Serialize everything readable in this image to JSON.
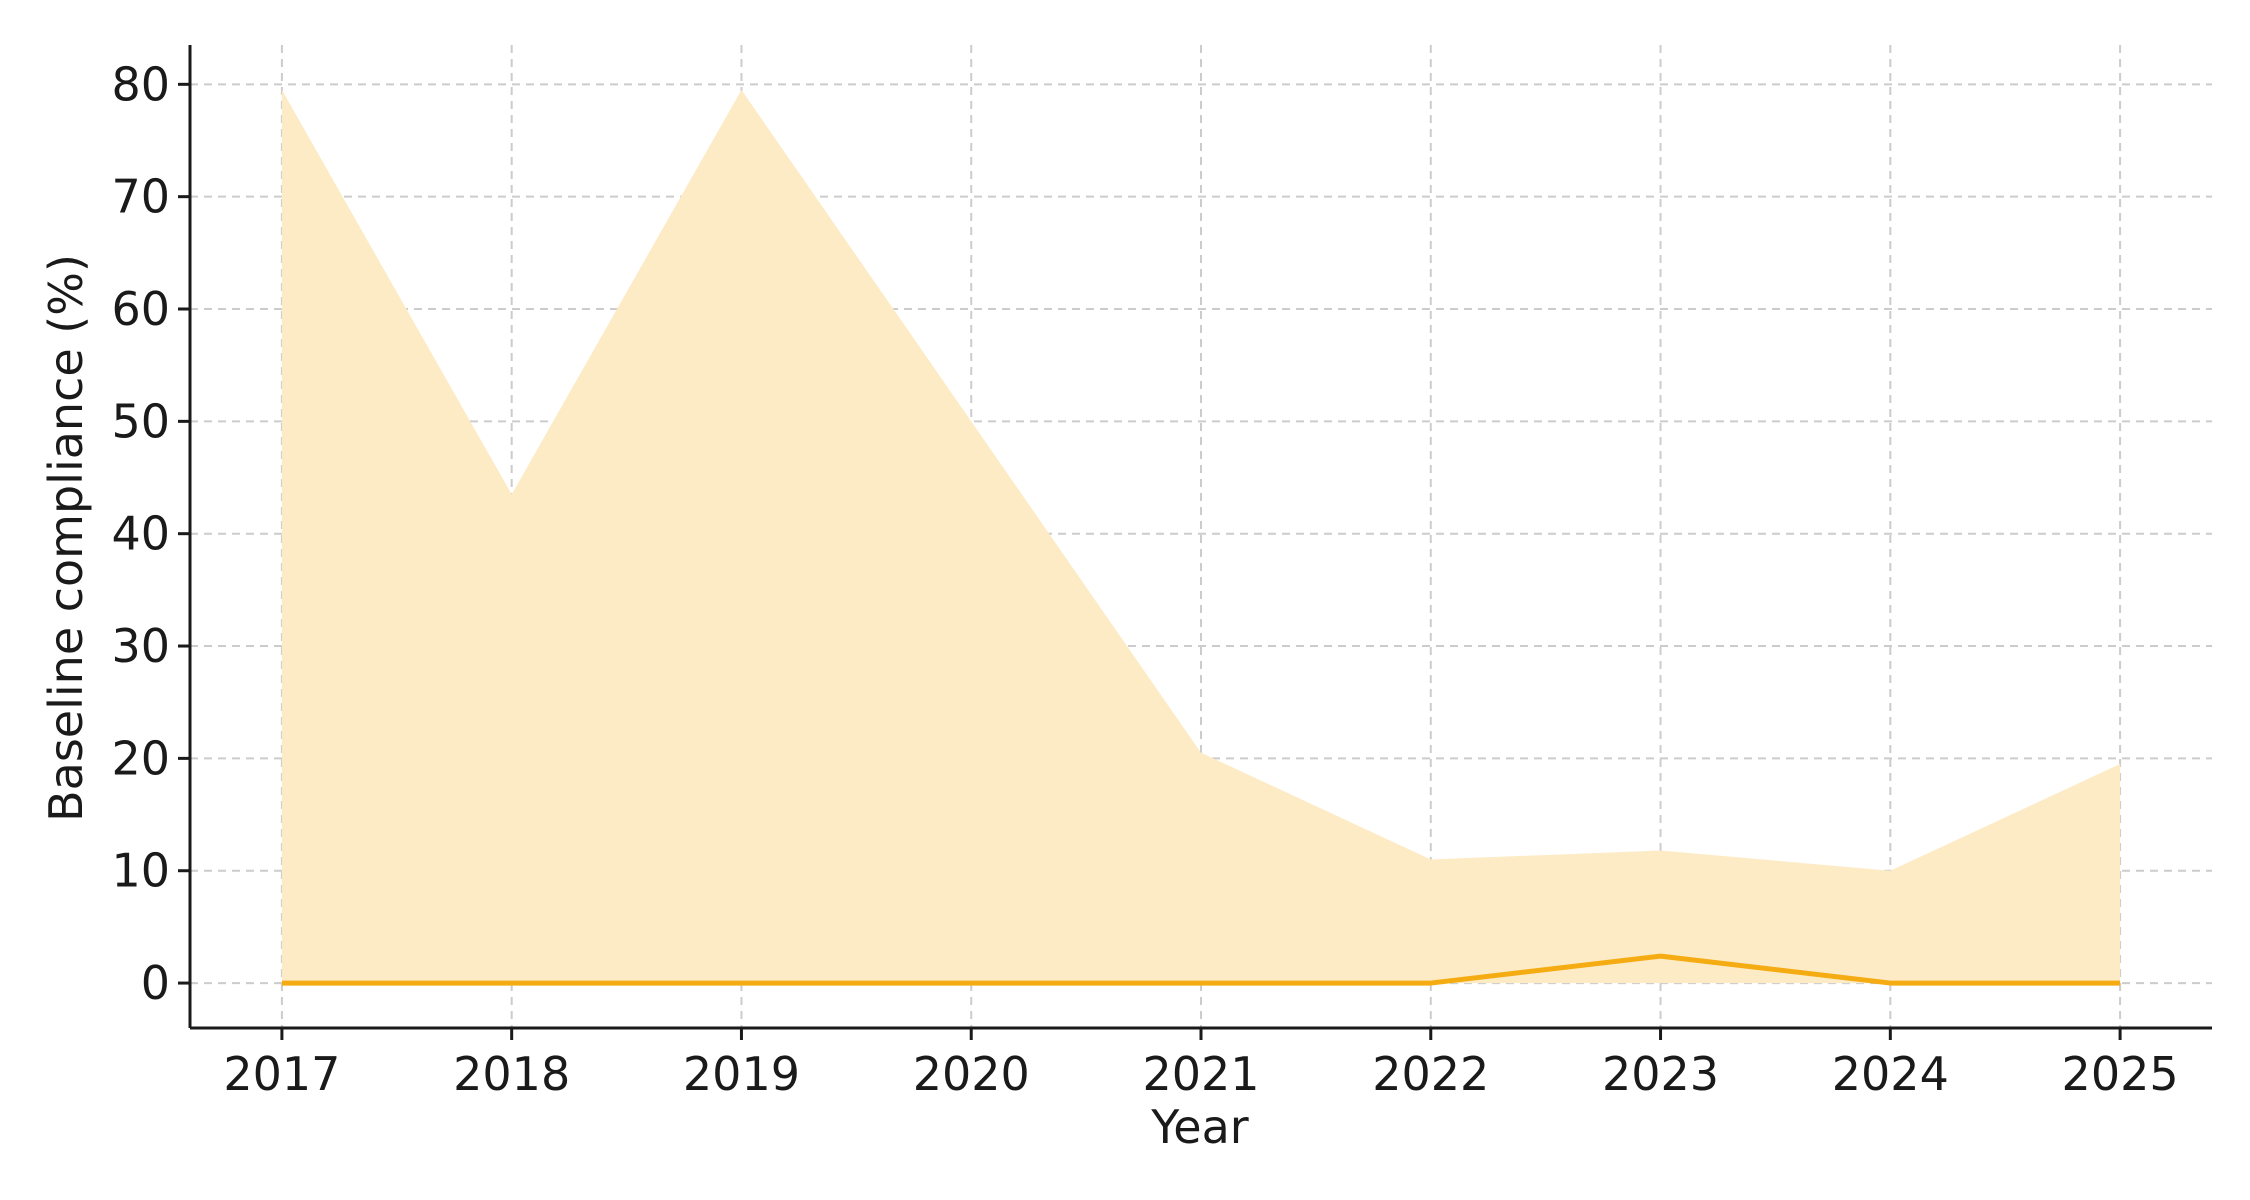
{
  "chart_data": {
    "type": "area",
    "x": [
      2017,
      2018,
      2019,
      2020,
      2021,
      2022,
      2023,
      2024,
      2025
    ],
    "x_tick_labels": [
      "2017",
      "2018",
      "2019",
      "2020",
      "2021",
      "2022",
      "2023",
      "2024",
      "2025"
    ],
    "series": [
      {
        "role": "band-upper",
        "values": [
          79.5,
          43.5,
          79.5,
          50.0,
          20.5,
          11.0,
          11.8,
          10.0,
          19.5
        ],
        "color": "#fdebc6"
      },
      {
        "role": "band-lower",
        "values": [
          0,
          0,
          0,
          0,
          0,
          0,
          0,
          0,
          0
        ]
      },
      {
        "role": "line",
        "values": [
          0,
          0,
          0,
          0,
          0,
          0,
          2.4,
          0,
          0
        ],
        "color": "#f5ab12"
      }
    ],
    "xlabel": "Year",
    "ylabel": "Baseline compliance (%)",
    "ylim": [
      -4,
      83.5
    ],
    "xlim": [
      2016.6,
      2025.4
    ],
    "y_ticks": [
      0,
      10,
      20,
      30,
      40,
      50,
      60,
      70,
      80
    ],
    "y_tick_labels": [
      "0",
      "10",
      "20",
      "30",
      "40",
      "50",
      "60",
      "70",
      "80"
    ],
    "grid": true,
    "legend": "none"
  }
}
